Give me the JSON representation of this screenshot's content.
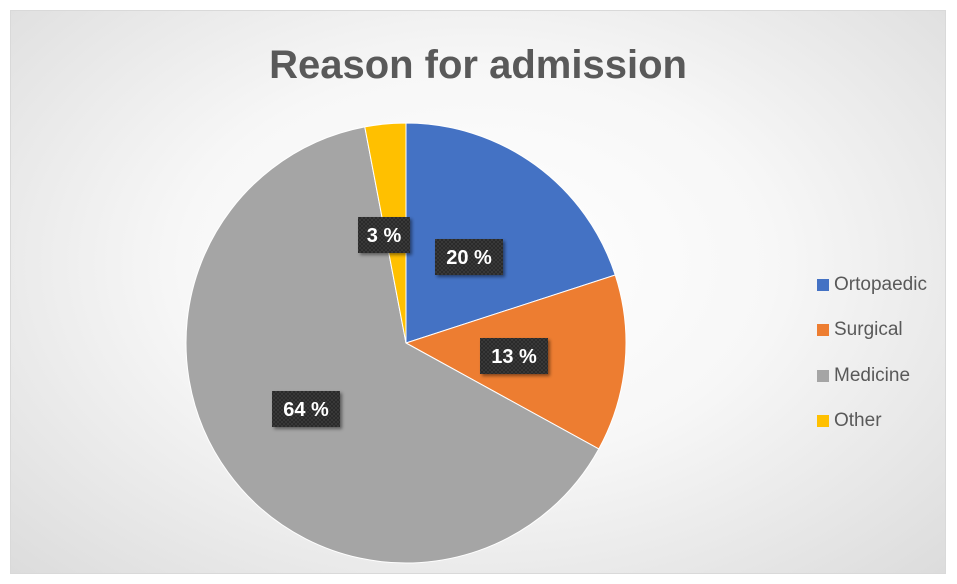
{
  "chart_data": {
    "type": "pie",
    "title": "Reason for admission",
    "legend_position": "right",
    "slices": [
      {
        "name": "Ortopaedic",
        "value": 20,
        "label": "20 %",
        "color": "#4472c4"
      },
      {
        "name": "Surgical",
        "value": 13,
        "label": "13 %",
        "color": "#ed7d31"
      },
      {
        "name": "Medicine",
        "value": 64,
        "label": "64 %",
        "color": "#a5a5a5"
      },
      {
        "name": "Other",
        "value": 3,
        "label": "3 %",
        "color": "#ffc000"
      }
    ]
  }
}
